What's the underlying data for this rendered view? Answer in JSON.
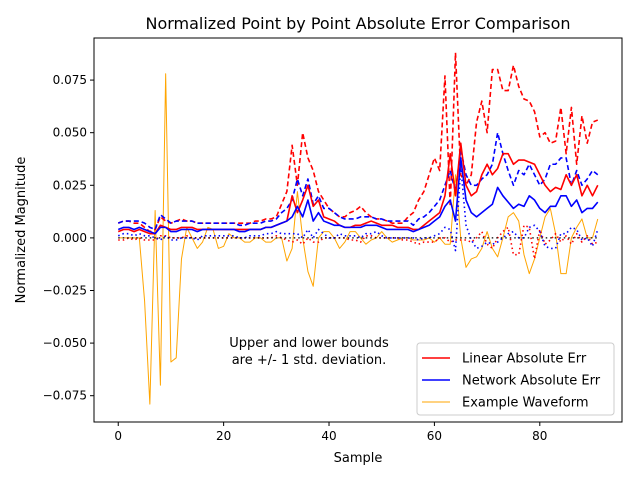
{
  "chart_data": {
    "type": "line",
    "title": "Normalized Point by Point Absolute Error Comparison",
    "xlabel": "Sample",
    "ylabel": "Normalized Magnitude",
    "xlim": [
      -4.6,
      95.6
    ],
    "ylim": [
      -0.0875,
      0.095
    ],
    "xticks": [
      0,
      20,
      40,
      60,
      80
    ],
    "xtick_labels": [
      "0",
      "20",
      "40",
      "60",
      "80"
    ],
    "yticks": [
      -0.075,
      -0.05,
      -0.025,
      0.0,
      0.025,
      0.05,
      0.075
    ],
    "ytick_labels": [
      "−0.075",
      "−0.050",
      "−0.025",
      "0.000",
      "0.025",
      "0.050",
      "0.075"
    ],
    "grid": false,
    "legend_position": "lower right",
    "annotation": [
      "Upper and lower bounds",
      "are +/- 1 std. deviation."
    ],
    "colors": {
      "linear": "#ff0000",
      "network": "#0000ff",
      "waveform": "#ffa500"
    },
    "x": [
      0,
      1,
      2,
      3,
      4,
      5,
      6,
      7,
      8,
      9,
      10,
      11,
      12,
      13,
      14,
      15,
      16,
      17,
      18,
      19,
      20,
      21,
      22,
      23,
      24,
      25,
      26,
      27,
      28,
      29,
      30,
      31,
      32,
      33,
      34,
      35,
      36,
      37,
      38,
      39,
      40,
      41,
      42,
      43,
      44,
      45,
      46,
      47,
      48,
      49,
      50,
      51,
      52,
      53,
      54,
      55,
      56,
      57,
      58,
      59,
      60,
      61,
      62,
      63,
      64,
      65,
      66,
      67,
      68,
      69,
      70,
      71,
      72,
      73,
      74,
      75,
      76,
      77,
      78,
      79,
      80,
      81,
      82,
      83,
      84,
      85,
      86,
      87,
      88,
      89,
      90,
      91
    ],
    "series": [
      {
        "name": "Linear Absolute Err",
        "color": "#ff0000",
        "role": "mean",
        "values": [
          0.003,
          0.004,
          0.004,
          0.003,
          0.004,
          0.003,
          0.002,
          0.002,
          0.006,
          0.005,
          0.004,
          0.004,
          0.005,
          0.005,
          0.005,
          0.004,
          0.004,
          0.004,
          0.004,
          0.004,
          0.004,
          0.004,
          0.004,
          0.004,
          0.004,
          0.004,
          0.004,
          0.004,
          0.005,
          0.005,
          0.006,
          0.007,
          0.008,
          0.02,
          0.012,
          0.018,
          0.025,
          0.015,
          0.018,
          0.01,
          0.009,
          0.008,
          0.006,
          0.005,
          0.005,
          0.006,
          0.006,
          0.007,
          0.008,
          0.007,
          0.006,
          0.006,
          0.006,
          0.005,
          0.005,
          0.005,
          0.004,
          0.004,
          0.006,
          0.008,
          0.01,
          0.012,
          0.02,
          0.04,
          0.02,
          0.045,
          0.025,
          0.02,
          0.022,
          0.03,
          0.035,
          0.03,
          0.033,
          0.04,
          0.04,
          0.035,
          0.037,
          0.037,
          0.036,
          0.035,
          0.03,
          0.025,
          0.022,
          0.024,
          0.023,
          0.03,
          0.025,
          0.03,
          0.02,
          0.025,
          0.02,
          0.025
        ]
      },
      {
        "name": "Linear Upper Bound",
        "color": "#ff0000",
        "role": "upper",
        "values": [
          0.007,
          0.008,
          0.008,
          0.007,
          0.007,
          0.005,
          0.003,
          0.004,
          0.01,
          0.008,
          0.007,
          0.008,
          0.009,
          0.008,
          0.008,
          0.007,
          0.007,
          0.007,
          0.007,
          0.007,
          0.007,
          0.007,
          0.007,
          0.007,
          0.007,
          0.007,
          0.008,
          0.008,
          0.009,
          0.009,
          0.01,
          0.016,
          0.022,
          0.044,
          0.025,
          0.05,
          0.038,
          0.032,
          0.022,
          0.018,
          0.014,
          0.012,
          0.01,
          0.01,
          0.012,
          0.013,
          0.015,
          0.012,
          0.01,
          0.009,
          0.009,
          0.008,
          0.007,
          0.007,
          0.007,
          0.01,
          0.012,
          0.018,
          0.022,
          0.03,
          0.038,
          0.032,
          0.077,
          0.015,
          0.088,
          0.03,
          0.025,
          0.03,
          0.055,
          0.065,
          0.05,
          0.08,
          0.08,
          0.07,
          0.07,
          0.082,
          0.072,
          0.066,
          0.065,
          0.06,
          0.048,
          0.05,
          0.045,
          0.046,
          0.062,
          0.04,
          0.062,
          0.035,
          0.058,
          0.045,
          0.055,
          0.056
        ]
      },
      {
        "name": "Linear Lower Bound",
        "color": "#ff0000",
        "role": "lower",
        "values": [
          -0.001,
          -0.001,
          0.0,
          -0.001,
          0.0,
          -0.001,
          -0.001,
          -0.001,
          0.001,
          0.001,
          0.0,
          0.0,
          0.0,
          0.001,
          0.0,
          0.0,
          0.0,
          0.0,
          0.0,
          0.0,
          0.0,
          0.0,
          0.0,
          0.0,
          0.0,
          0.0,
          0.0,
          0.0,
          0.0,
          0.0,
          0.001,
          0.0,
          -0.001,
          -0.002,
          -0.001,
          -0.003,
          0.0,
          -0.002,
          -0.002,
          0.0,
          0.0,
          0.0,
          0.0,
          0.0,
          -0.001,
          -0.001,
          -0.002,
          0.001,
          0.001,
          0.0,
          0.0,
          0.0,
          0.0,
          0.0,
          -0.001,
          -0.001,
          -0.002,
          -0.003,
          -0.002,
          -0.002,
          -0.002,
          0.0,
          0.0,
          -0.002,
          -0.001,
          -0.001,
          -0.001,
          -0.002,
          0.0,
          0.003,
          -0.003,
          -0.005,
          0.0,
          0.003,
          0.005,
          -0.008,
          -0.008,
          0.006,
          0.005,
          -0.01,
          0.004,
          -0.003,
          -0.001,
          0.002,
          -0.002,
          0.001,
          -0.003,
          0.002,
          -0.002,
          0.001,
          -0.003,
          -0.002
        ]
      },
      {
        "name": "Network Absolute Err",
        "color": "#0000ff",
        "role": "mean",
        "values": [
          0.004,
          0.005,
          0.005,
          0.004,
          0.005,
          0.004,
          0.003,
          0.002,
          0.005,
          0.005,
          0.003,
          0.003,
          0.004,
          0.004,
          0.004,
          0.003,
          0.004,
          0.004,
          0.004,
          0.004,
          0.004,
          0.004,
          0.004,
          0.003,
          0.003,
          0.004,
          0.004,
          0.004,
          0.005,
          0.005,
          0.006,
          0.007,
          0.008,
          0.01,
          0.015,
          0.01,
          0.018,
          0.008,
          0.012,
          0.008,
          0.007,
          0.006,
          0.006,
          0.005,
          0.005,
          0.005,
          0.005,
          0.006,
          0.006,
          0.006,
          0.005,
          0.004,
          0.004,
          0.004,
          0.004,
          0.004,
          0.003,
          0.004,
          0.005,
          0.006,
          0.008,
          0.01,
          0.015,
          0.018,
          0.008,
          0.038,
          0.018,
          0.012,
          0.01,
          0.012,
          0.014,
          0.016,
          0.024,
          0.02,
          0.017,
          0.014,
          0.016,
          0.015,
          0.02,
          0.018,
          0.014,
          0.012,
          0.015,
          0.015,
          0.02,
          0.02,
          0.015,
          0.018,
          0.012,
          0.014,
          0.014,
          0.017
        ]
      },
      {
        "name": "Network Upper Bound",
        "color": "#0000ff",
        "role": "upper",
        "values": [
          0.007,
          0.008,
          0.008,
          0.008,
          0.008,
          0.007,
          0.005,
          0.004,
          0.011,
          0.009,
          0.007,
          0.008,
          0.008,
          0.008,
          0.008,
          0.007,
          0.007,
          0.007,
          0.007,
          0.007,
          0.007,
          0.007,
          0.007,
          0.006,
          0.006,
          0.007,
          0.007,
          0.007,
          0.008,
          0.008,
          0.009,
          0.012,
          0.014,
          0.018,
          0.028,
          0.02,
          0.028,
          0.016,
          0.02,
          0.014,
          0.014,
          0.012,
          0.01,
          0.009,
          0.009,
          0.009,
          0.01,
          0.01,
          0.01,
          0.009,
          0.009,
          0.008,
          0.008,
          0.008,
          0.008,
          0.008,
          0.006,
          0.009,
          0.01,
          0.012,
          0.015,
          0.018,
          0.025,
          0.032,
          0.022,
          0.042,
          0.03,
          0.025,
          0.025,
          0.028,
          0.03,
          0.035,
          0.05,
          0.04,
          0.032,
          0.025,
          0.032,
          0.03,
          0.035,
          0.03,
          0.025,
          0.028,
          0.035,
          0.035,
          0.038,
          0.038,
          0.025,
          0.032,
          0.025,
          0.028,
          0.032,
          0.03
        ]
      },
      {
        "name": "Network Lower Bound",
        "color": "#0000ff",
        "role": "lower",
        "values": [
          0.001,
          0.002,
          0.002,
          0.001,
          0.002,
          0.001,
          0.001,
          0.0,
          -0.001,
          0.001,
          -0.001,
          -0.001,
          0.0,
          0.0,
          0.0,
          -0.001,
          0.001,
          0.001,
          0.001,
          0.001,
          0.001,
          0.001,
          0.001,
          0.0,
          0.0,
          0.001,
          0.001,
          0.001,
          0.002,
          0.002,
          0.003,
          0.002,
          0.002,
          0.002,
          0.002,
          0.0,
          0.004,
          0.0,
          0.004,
          0.002,
          0.0,
          0.0,
          0.002,
          0.001,
          0.001,
          0.001,
          0.0,
          0.002,
          0.002,
          0.003,
          0.001,
          0.0,
          0.0,
          0.0,
          0.0,
          0.0,
          0.0,
          -0.001,
          0.0,
          0.0,
          0.001,
          0.002,
          0.005,
          0.004,
          -0.006,
          0.034,
          0.006,
          -0.001,
          -0.005,
          -0.004,
          -0.002,
          -0.003,
          -0.002,
          0.0,
          0.002,
          0.003,
          0.0,
          0.0,
          0.005,
          0.006,
          0.003,
          -0.004,
          -0.005,
          -0.005,
          0.002,
          0.002,
          0.005,
          0.004,
          -0.001,
          0.0,
          -0.004,
          0.004
        ]
      },
      {
        "name": "Example Waveform",
        "color": "#ffa500",
        "role": "waveform",
        "values": [
          0.0,
          0.0,
          0.0,
          0.0,
          0.0,
          -0.03,
          -0.079,
          0.013,
          -0.07,
          0.078,
          -0.059,
          -0.057,
          -0.01,
          0.005,
          0.0,
          -0.005,
          -0.002,
          0.005,
          0.004,
          -0.005,
          -0.004,
          0.002,
          0.0,
          0.0,
          -0.002,
          -0.002,
          0.0,
          0.0,
          -0.002,
          -0.002,
          0.0,
          0.0,
          -0.011,
          -0.005,
          0.022,
          0.0,
          -0.016,
          -0.023,
          0.0,
          0.003,
          0.003,
          0.0,
          -0.005,
          -0.002,
          0.003,
          0.003,
          0.0,
          -0.003,
          -0.001,
          0.0,
          0.003,
          0.0,
          -0.002,
          -0.001,
          0.0,
          0.0,
          -0.001,
          -0.001,
          -0.001,
          0.0,
          -0.002,
          0.0,
          -0.003,
          -0.003,
          0.03,
          0.0,
          -0.014,
          -0.01,
          -0.009,
          -0.005,
          0.003,
          -0.005,
          -0.009,
          0.0,
          0.01,
          0.012,
          0.008,
          -0.008,
          -0.017,
          -0.01,
          0.0,
          0.01,
          0.014,
          0.002,
          -0.017,
          -0.017,
          0.0,
          0.005,
          0.009,
          0.0,
          0.0,
          0.009
        ]
      }
    ],
    "legend": [
      {
        "label": "Linear Absolute Err",
        "color": "#ff0000",
        "width": 1.6
      },
      {
        "label": "Network Absolute Err",
        "color": "#0000ff",
        "width": 1.6
      },
      {
        "label": "Example Waveform",
        "color": "#ffa500",
        "width": 1.0
      }
    ]
  }
}
